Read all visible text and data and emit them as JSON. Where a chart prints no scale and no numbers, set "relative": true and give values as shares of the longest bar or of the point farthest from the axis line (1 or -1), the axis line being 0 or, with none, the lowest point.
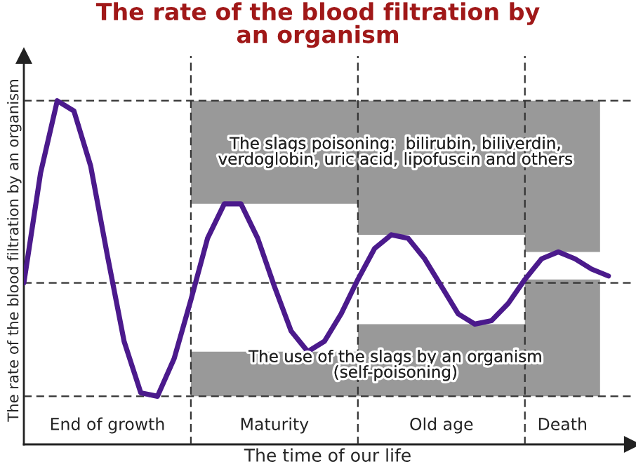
{
  "chart_data": {
    "type": "line",
    "relative": true,
    "title": "The rate of the blood filtration by\nan organism",
    "xlabel": "The time of our life",
    "ylabel": "The rate of the blood filtration by an organism",
    "categories": [
      null,
      null,
      null,
      null,
      null,
      null,
      null,
      null,
      null,
      null,
      null,
      null,
      null,
      null,
      null,
      null,
      null,
      null,
      null,
      null,
      null,
      null,
      null,
      null,
      null,
      null,
      null,
      null,
      null,
      null,
      null,
      null,
      null,
      null,
      null,
      null
    ],
    "color": "#4b1a8c",
    "values": [
      0.47,
      0.79,
      1.0,
      0.97,
      0.81,
      0.55,
      0.3,
      0.15,
      0.14,
      0.25,
      0.42,
      0.6,
      0.7,
      0.7,
      0.6,
      0.46,
      0.33,
      0.27,
      0.3,
      0.38,
      0.48,
      0.57,
      0.61,
      0.6,
      0.54,
      0.46,
      0.38,
      0.35,
      0.36,
      0.41,
      0.48,
      0.54,
      0.56,
      0.54,
      0.51,
      0.49
    ],
    "annotations": [
      "The slags poisoning:  bilirubin, biliverdin,\nverdoglobin, uric acid, lipofuscin and others",
      "The use of the slags by an organism\n(self-poisoning)",
      "End of growth",
      "Maturity",
      "Old age",
      "Death"
    ],
    "grid": true
  }
}
